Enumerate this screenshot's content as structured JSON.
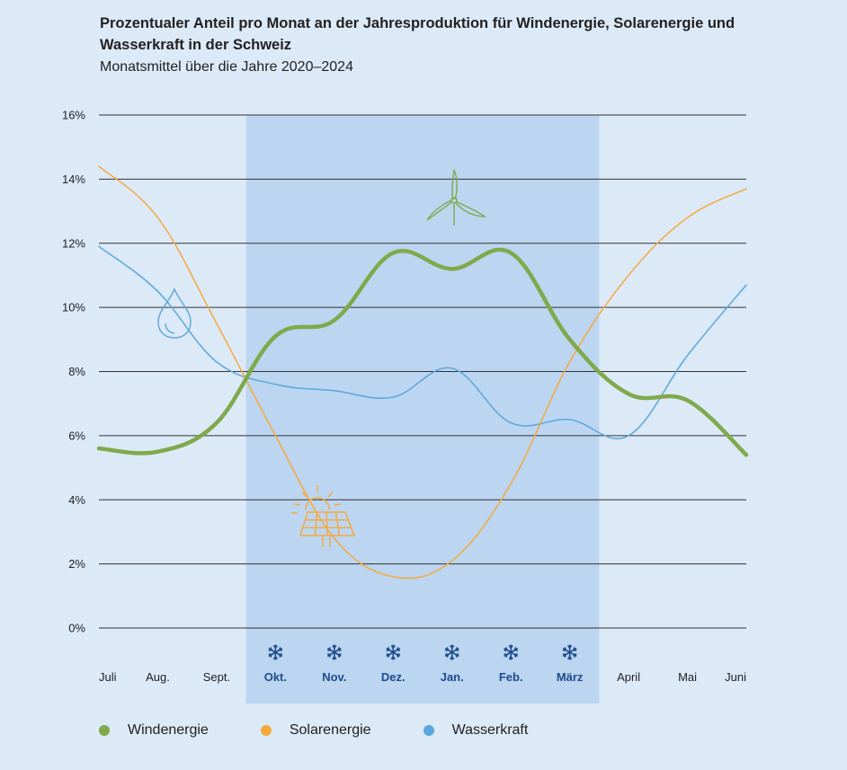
{
  "header": {
    "title": "Prozentualer Anteil pro Monat an der Jahresproduktion für Windenergie, Solarenergie und Wasserkraft in der Schweiz",
    "subtitle": "Monatsmittel über die Jahre 2020–2024"
  },
  "chart_data": {
    "type": "line",
    "title": "Prozentualer Anteil pro Monat an der Jahresproduktion für Windenergie, Solarenergie und Wasserkraft in der Schweiz",
    "subtitle": "Monatsmittel über die Jahre 2020–2024",
    "categories": [
      "Juli",
      "Aug.",
      "Sept.",
      "Okt.",
      "Nov.",
      "Dez.",
      "Jan.",
      "Feb.",
      "März",
      "April",
      "Mai",
      "Juni"
    ],
    "winter_months": [
      "Okt.",
      "Nov.",
      "Dez.",
      "Jan.",
      "Feb.",
      "März"
    ],
    "y_ticks": [
      "0%",
      "2%",
      "4%",
      "6%",
      "8%",
      "10%",
      "12%",
      "14%",
      "16%"
    ],
    "ylim": [
      0,
      16
    ],
    "y_unit": "%",
    "grid": true,
    "legend_position": "bottom-left",
    "series": [
      {
        "name": "Windenergie",
        "color": "#7fa94b",
        "icon": "wind-turbine-icon",
        "values": [
          5.6,
          5.5,
          6.4,
          9.1,
          9.6,
          11.7,
          11.2,
          11.7,
          9.0,
          7.3,
          7.1,
          5.4
        ]
      },
      {
        "name": "Solarenergie",
        "color": "#f5a93c",
        "icon": "solar-panel-icon",
        "values": [
          14.4,
          12.8,
          9.5,
          6.0,
          2.8,
          1.6,
          2.1,
          4.5,
          8.3,
          11.0,
          12.8,
          13.7
        ]
      },
      {
        "name": "Wasserkraft",
        "color": "#5aa6dc",
        "icon": "water-drop-icon",
        "values": [
          11.9,
          10.5,
          8.3,
          7.6,
          7.4,
          7.2,
          8.1,
          6.4,
          6.5,
          6.0,
          8.5,
          10.7
        ]
      }
    ],
    "winter_icon": "snowflake-icon"
  },
  "colors": {
    "background": "#dce9f7",
    "winter_band": "#bcd5f0",
    "winter_label": "#1e4c8c"
  }
}
